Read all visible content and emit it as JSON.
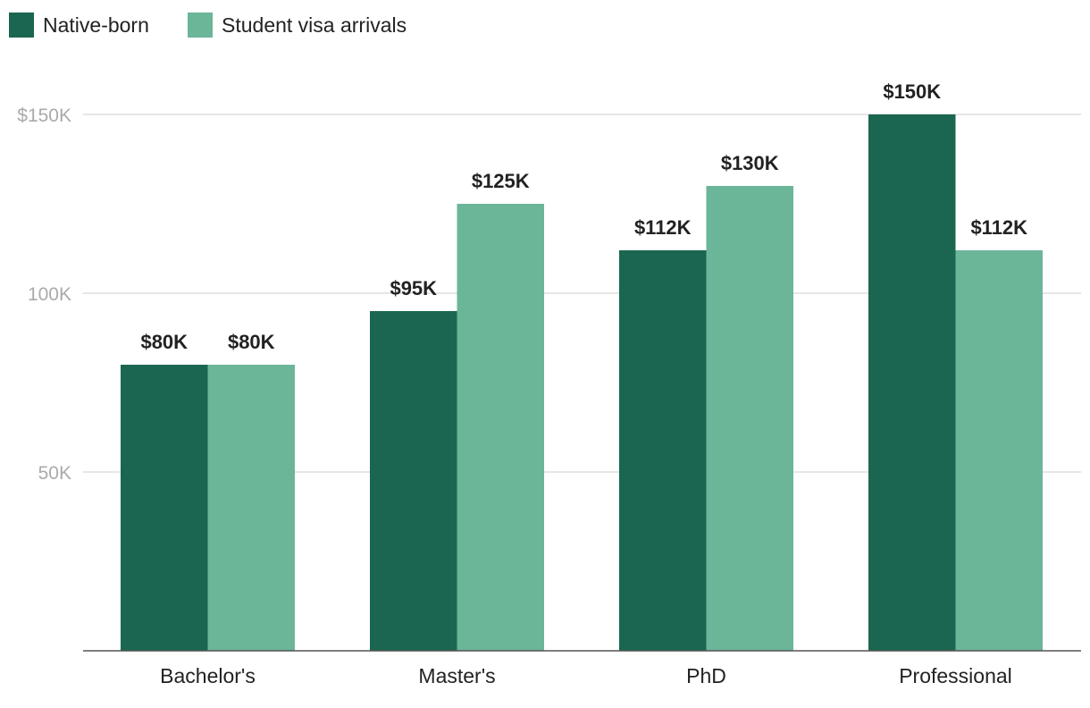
{
  "chart_data": {
    "type": "bar",
    "title": "",
    "xlabel": "",
    "ylabel": "",
    "categories": [
      "Bachelor's",
      "Master's",
      "PhD",
      "Professional"
    ],
    "series": [
      {
        "name": "Native-born",
        "color": "#1b6650",
        "values": [
          80,
          95,
          112,
          150
        ],
        "labels": [
          "$80K",
          "$95K",
          "$112K",
          "$150K"
        ]
      },
      {
        "name": "Student visa arrivals",
        "color": "#6bb598",
        "values": [
          80,
          125,
          130,
          112
        ],
        "labels": [
          "$80K",
          "$125K",
          "$130K",
          "$112K"
        ]
      }
    ],
    "ylim": [
      0,
      150
    ],
    "yticks": [
      {
        "value": 50,
        "label": "50K"
      },
      {
        "value": 100,
        "label": "100K"
      },
      {
        "value": 150,
        "label": "$150K"
      }
    ],
    "grid": true,
    "legend_position": "top-left"
  }
}
